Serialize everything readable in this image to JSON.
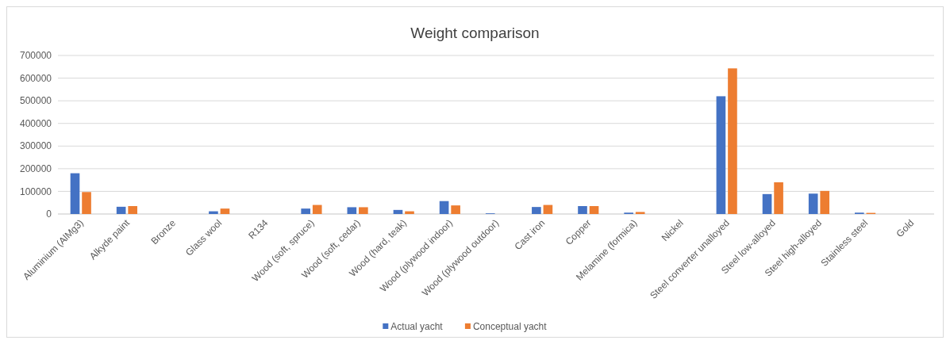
{
  "chart_data": {
    "type": "bar",
    "title": "Weight comparison",
    "categories": [
      "Aluminium (AlMg3)",
      "Alkyde paint",
      "Bronze",
      "Glass wool",
      "R134",
      "Wood (soft, spruce)",
      "Wood (soft, cedar)",
      "Wood (hard, teak)",
      "Wood (plywood indoor)",
      "Wood (plywood outdoor)",
      "Cast iron",
      "Copper",
      "Melamine (formica)",
      "Nickel",
      "Steel converter unalloyed",
      "Steel low-alloyed",
      "Steel high-alloyed",
      "Stainless steel",
      "Gold"
    ],
    "series": [
      {
        "name": "Actual yacht",
        "color": "#4472c4",
        "values": [
          180000,
          32000,
          0,
          12000,
          0,
          24000,
          30000,
          18000,
          57000,
          3000,
          31000,
          35000,
          6000,
          0,
          520000,
          88000,
          90000,
          6000,
          0
        ]
      },
      {
        "name": "Conceptual yacht",
        "color": "#ed7d31",
        "values": [
          97000,
          35000,
          0,
          24000,
          0,
          40000,
          30000,
          12000,
          38000,
          0,
          40000,
          35000,
          9000,
          0,
          643000,
          140000,
          102000,
          5000,
          0
        ]
      }
    ],
    "ylim": [
      0,
      700000
    ],
    "yticks": [
      0,
      100000,
      200000,
      300000,
      400000,
      500000,
      600000,
      700000
    ],
    "grid": "y",
    "legend": "bottom"
  }
}
